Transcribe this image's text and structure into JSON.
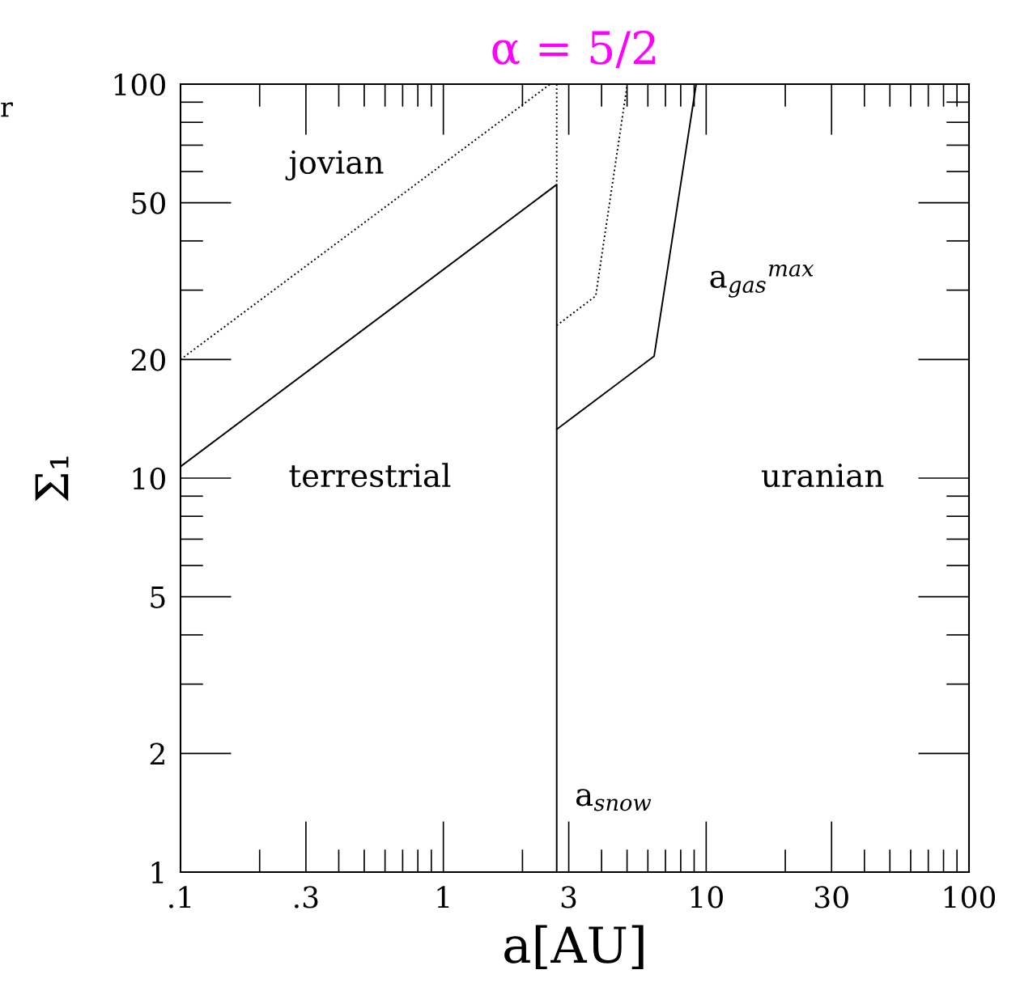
{
  "chart_data": {
    "type": "line",
    "title": "α = 5/2",
    "xlabel": "a[AU]",
    "ylabel": "Σ₁",
    "log": "xy",
    "grid": false,
    "legend": false,
    "xlim": [
      0.1,
      100
    ],
    "ylim": [
      1,
      100
    ],
    "xticks": [
      {
        "value": 0.1,
        "label": ".1"
      },
      {
        "value": 0.3,
        "label": ".3"
      },
      1,
      3,
      10,
      30,
      100
    ],
    "yticks": [
      1,
      2,
      5,
      10,
      20,
      50,
      100
    ],
    "series": [
      {
        "color": "#000000",
        "line_style": "solid",
        "x": [
          0.1,
          2.7,
          2.7
        ],
        "values": [
          10.7,
          55.6,
          1
        ]
      },
      {
        "color": "#000000",
        "line_style": "dotted",
        "x": [
          0.1,
          2.55
        ],
        "values": [
          20,
          100
        ]
      },
      {
        "color": "#000000",
        "line_style": "dotted",
        "x": [
          2.7,
          2.7
        ],
        "values": [
          100,
          55.6
        ]
      },
      {
        "color": "#000000",
        "line_style": "solid",
        "x": [
          2.7,
          6.34,
          9.16
        ],
        "values": [
          13.3,
          20.4,
          100
        ]
      },
      {
        "color": "#000000",
        "line_style": "dotted",
        "x": [
          2.7,
          3.8,
          5.01
        ],
        "values": [
          24.4,
          29.0,
          100
        ]
      }
    ],
    "annotations": [
      "jovian",
      "terrestrial",
      "uranian",
      "a$_{gas}$$^{max}$",
      "a$_{snow}$",
      "r"
    ]
  }
}
